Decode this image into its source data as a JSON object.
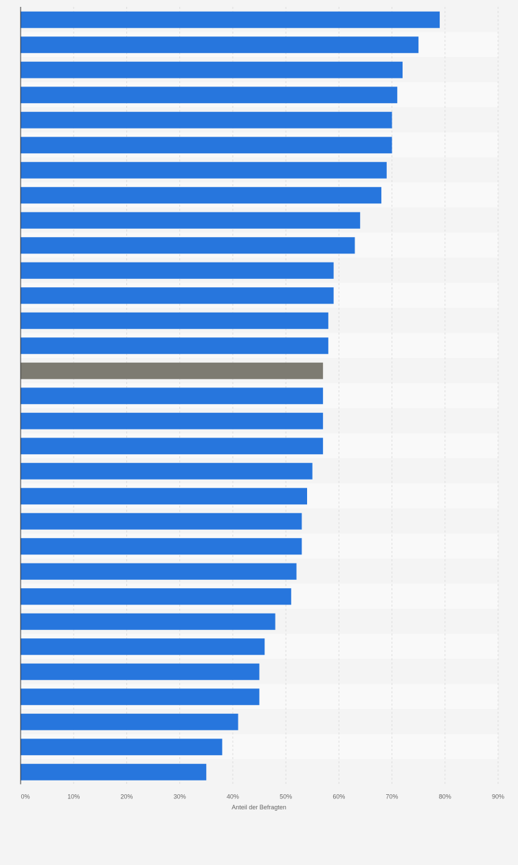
{
  "chart_data": {
    "type": "bar",
    "orientation": "horizontal",
    "xlabel": "Anteil der Befragten",
    "xlim": [
      0,
      90
    ],
    "x_ticks": [
      "0%",
      "10%",
      "20%",
      "30%",
      "40%",
      "50%",
      "60%",
      "70%",
      "80%",
      "90%"
    ],
    "values": [
      79,
      75,
      72,
      71,
      70,
      70,
      69,
      68,
      64,
      63,
      59,
      59,
      58,
      58,
      57,
      57,
      57,
      57,
      55,
      54,
      53,
      53,
      52,
      51,
      48,
      46,
      45,
      45,
      41,
      38,
      35
    ],
    "highlight_index": 14,
    "grid": true,
    "colors": {
      "bar": "#2776dd",
      "highlight": "#7d7b72",
      "band_light": "#f9f9f9",
      "band_dark": "#f4f4f4",
      "grid": "#dddddd",
      "axis": "#333333"
    }
  }
}
